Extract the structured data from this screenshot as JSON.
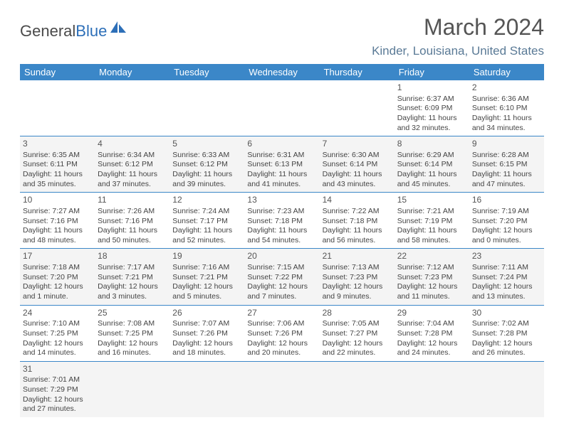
{
  "brand": {
    "part1": "General",
    "part2": "Blue"
  },
  "title": "March 2024",
  "location": "Kinder, Louisiana, United States",
  "colors": {
    "header_bg": "#3b87c8",
    "header_fg": "#ffffff",
    "row_alt_bg": "#f4f4f4",
    "border": "#3b87c8",
    "title_color": "#555555",
    "location_color": "#5a7a96",
    "logo_blue": "#2d6fb8"
  },
  "dayHeaders": [
    "Sunday",
    "Monday",
    "Tuesday",
    "Wednesday",
    "Thursday",
    "Friday",
    "Saturday"
  ],
  "weeks": [
    [
      null,
      null,
      null,
      null,
      null,
      {
        "n": "1",
        "sr": "Sunrise: 6:37 AM",
        "ss": "Sunset: 6:09 PM",
        "d1": "Daylight: 11 hours",
        "d2": "and 32 minutes."
      },
      {
        "n": "2",
        "sr": "Sunrise: 6:36 AM",
        "ss": "Sunset: 6:10 PM",
        "d1": "Daylight: 11 hours",
        "d2": "and 34 minutes."
      }
    ],
    [
      {
        "n": "3",
        "sr": "Sunrise: 6:35 AM",
        "ss": "Sunset: 6:11 PM",
        "d1": "Daylight: 11 hours",
        "d2": "and 35 minutes."
      },
      {
        "n": "4",
        "sr": "Sunrise: 6:34 AM",
        "ss": "Sunset: 6:12 PM",
        "d1": "Daylight: 11 hours",
        "d2": "and 37 minutes."
      },
      {
        "n": "5",
        "sr": "Sunrise: 6:33 AM",
        "ss": "Sunset: 6:12 PM",
        "d1": "Daylight: 11 hours",
        "d2": "and 39 minutes."
      },
      {
        "n": "6",
        "sr": "Sunrise: 6:31 AM",
        "ss": "Sunset: 6:13 PM",
        "d1": "Daylight: 11 hours",
        "d2": "and 41 minutes."
      },
      {
        "n": "7",
        "sr": "Sunrise: 6:30 AM",
        "ss": "Sunset: 6:14 PM",
        "d1": "Daylight: 11 hours",
        "d2": "and 43 minutes."
      },
      {
        "n": "8",
        "sr": "Sunrise: 6:29 AM",
        "ss": "Sunset: 6:14 PM",
        "d1": "Daylight: 11 hours",
        "d2": "and 45 minutes."
      },
      {
        "n": "9",
        "sr": "Sunrise: 6:28 AM",
        "ss": "Sunset: 6:15 PM",
        "d1": "Daylight: 11 hours",
        "d2": "and 47 minutes."
      }
    ],
    [
      {
        "n": "10",
        "sr": "Sunrise: 7:27 AM",
        "ss": "Sunset: 7:16 PM",
        "d1": "Daylight: 11 hours",
        "d2": "and 48 minutes."
      },
      {
        "n": "11",
        "sr": "Sunrise: 7:26 AM",
        "ss": "Sunset: 7:16 PM",
        "d1": "Daylight: 11 hours",
        "d2": "and 50 minutes."
      },
      {
        "n": "12",
        "sr": "Sunrise: 7:24 AM",
        "ss": "Sunset: 7:17 PM",
        "d1": "Daylight: 11 hours",
        "d2": "and 52 minutes."
      },
      {
        "n": "13",
        "sr": "Sunrise: 7:23 AM",
        "ss": "Sunset: 7:18 PM",
        "d1": "Daylight: 11 hours",
        "d2": "and 54 minutes."
      },
      {
        "n": "14",
        "sr": "Sunrise: 7:22 AM",
        "ss": "Sunset: 7:18 PM",
        "d1": "Daylight: 11 hours",
        "d2": "and 56 minutes."
      },
      {
        "n": "15",
        "sr": "Sunrise: 7:21 AM",
        "ss": "Sunset: 7:19 PM",
        "d1": "Daylight: 11 hours",
        "d2": "and 58 minutes."
      },
      {
        "n": "16",
        "sr": "Sunrise: 7:19 AM",
        "ss": "Sunset: 7:20 PM",
        "d1": "Daylight: 12 hours",
        "d2": "and 0 minutes."
      }
    ],
    [
      {
        "n": "17",
        "sr": "Sunrise: 7:18 AM",
        "ss": "Sunset: 7:20 PM",
        "d1": "Daylight: 12 hours",
        "d2": "and 1 minute."
      },
      {
        "n": "18",
        "sr": "Sunrise: 7:17 AM",
        "ss": "Sunset: 7:21 PM",
        "d1": "Daylight: 12 hours",
        "d2": "and 3 minutes."
      },
      {
        "n": "19",
        "sr": "Sunrise: 7:16 AM",
        "ss": "Sunset: 7:21 PM",
        "d1": "Daylight: 12 hours",
        "d2": "and 5 minutes."
      },
      {
        "n": "20",
        "sr": "Sunrise: 7:15 AM",
        "ss": "Sunset: 7:22 PM",
        "d1": "Daylight: 12 hours",
        "d2": "and 7 minutes."
      },
      {
        "n": "21",
        "sr": "Sunrise: 7:13 AM",
        "ss": "Sunset: 7:23 PM",
        "d1": "Daylight: 12 hours",
        "d2": "and 9 minutes."
      },
      {
        "n": "22",
        "sr": "Sunrise: 7:12 AM",
        "ss": "Sunset: 7:23 PM",
        "d1": "Daylight: 12 hours",
        "d2": "and 11 minutes."
      },
      {
        "n": "23",
        "sr": "Sunrise: 7:11 AM",
        "ss": "Sunset: 7:24 PM",
        "d1": "Daylight: 12 hours",
        "d2": "and 13 minutes."
      }
    ],
    [
      {
        "n": "24",
        "sr": "Sunrise: 7:10 AM",
        "ss": "Sunset: 7:25 PM",
        "d1": "Daylight: 12 hours",
        "d2": "and 14 minutes."
      },
      {
        "n": "25",
        "sr": "Sunrise: 7:08 AM",
        "ss": "Sunset: 7:25 PM",
        "d1": "Daylight: 12 hours",
        "d2": "and 16 minutes."
      },
      {
        "n": "26",
        "sr": "Sunrise: 7:07 AM",
        "ss": "Sunset: 7:26 PM",
        "d1": "Daylight: 12 hours",
        "d2": "and 18 minutes."
      },
      {
        "n": "27",
        "sr": "Sunrise: 7:06 AM",
        "ss": "Sunset: 7:26 PM",
        "d1": "Daylight: 12 hours",
        "d2": "and 20 minutes."
      },
      {
        "n": "28",
        "sr": "Sunrise: 7:05 AM",
        "ss": "Sunset: 7:27 PM",
        "d1": "Daylight: 12 hours",
        "d2": "and 22 minutes."
      },
      {
        "n": "29",
        "sr": "Sunrise: 7:04 AM",
        "ss": "Sunset: 7:28 PM",
        "d1": "Daylight: 12 hours",
        "d2": "and 24 minutes."
      },
      {
        "n": "30",
        "sr": "Sunrise: 7:02 AM",
        "ss": "Sunset: 7:28 PM",
        "d1": "Daylight: 12 hours",
        "d2": "and 26 minutes."
      }
    ],
    [
      {
        "n": "31",
        "sr": "Sunrise: 7:01 AM",
        "ss": "Sunset: 7:29 PM",
        "d1": "Daylight: 12 hours",
        "d2": "and 27 minutes."
      },
      null,
      null,
      null,
      null,
      null,
      null
    ]
  ]
}
